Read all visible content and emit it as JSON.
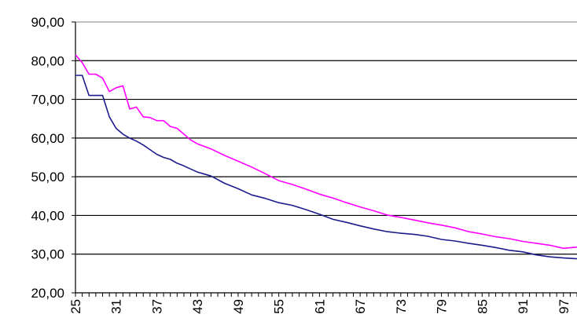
{
  "chart_data": {
    "type": "line",
    "title": "",
    "xlabel": "",
    "ylabel": "",
    "xlim": [
      25,
      99
    ],
    "ylim": [
      20,
      90
    ],
    "grid": true,
    "legend": "none",
    "y_ticks": [
      "90,00",
      "80,00",
      "70,00",
      "60,00",
      "50,00",
      "40,00",
      "30,00",
      "20,00"
    ],
    "y_tick_values": [
      90,
      80,
      70,
      60,
      50,
      40,
      30,
      20
    ],
    "x_tick_labels": [
      "25",
      "31",
      "37",
      "43",
      "49",
      "55",
      "61",
      "67",
      "73",
      "79",
      "85",
      "91",
      "97"
    ],
    "x_tick_values": [
      25,
      31,
      37,
      43,
      49,
      55,
      61,
      67,
      73,
      79,
      85,
      91,
      97
    ],
    "series": [
      {
        "color": "#ff00ff",
        "x": [
          25,
          26,
          27,
          28,
          29,
          30,
          31,
          32,
          33,
          34,
          35,
          36,
          37,
          38,
          39,
          40,
          41,
          42,
          43,
          45,
          47,
          49,
          51,
          53,
          55,
          57,
          59,
          61,
          63,
          65,
          67,
          69,
          71,
          73,
          75,
          77,
          79,
          81,
          83,
          85,
          87,
          89,
          91,
          93,
          95,
          97,
          99
        ],
        "y": [
          81.5,
          79.5,
          76.5,
          76.5,
          75.5,
          72,
          73,
          73.5,
          67.5,
          68,
          65.5,
          65.3,
          64.5,
          64.5,
          63,
          62.5,
          61,
          59.5,
          58.5,
          57.2,
          55.5,
          54,
          52.5,
          50.8,
          49,
          48,
          46.8,
          45.5,
          44.5,
          43.3,
          42.2,
          41.2,
          40.1,
          39.5,
          38.8,
          38.1,
          37.5,
          36.8,
          35.8,
          35.2,
          34.5,
          34,
          33.3,
          32.8,
          32.3,
          31.5,
          31.8
        ]
      },
      {
        "color": "#1c1c8c",
        "x": [
          25,
          26,
          27,
          28,
          29,
          30,
          31,
          32,
          33,
          34,
          35,
          36,
          37,
          38,
          39,
          40,
          41,
          42,
          43,
          45,
          47,
          49,
          51,
          53,
          55,
          57,
          59,
          61,
          63,
          65,
          67,
          69,
          71,
          73,
          75,
          77,
          79,
          81,
          83,
          85,
          87,
          89,
          91,
          93,
          95,
          97,
          99
        ],
        "y": [
          76.2,
          76.2,
          71,
          71,
          71,
          65.5,
          62.5,
          61,
          60,
          59.2,
          58.2,
          57,
          55.8,
          55,
          54.5,
          53.5,
          52.8,
          52,
          51.2,
          50.2,
          48.3,
          46.9,
          45.3,
          44.4,
          43.3,
          42.6,
          41.5,
          40.3,
          39,
          38.2,
          37.3,
          36.5,
          35.8,
          35.4,
          35.1,
          34.6,
          33.8,
          33.4,
          32.8,
          32.3,
          31.7,
          31,
          30.6,
          29.8,
          29.3,
          29,
          28.8
        ]
      }
    ]
  }
}
